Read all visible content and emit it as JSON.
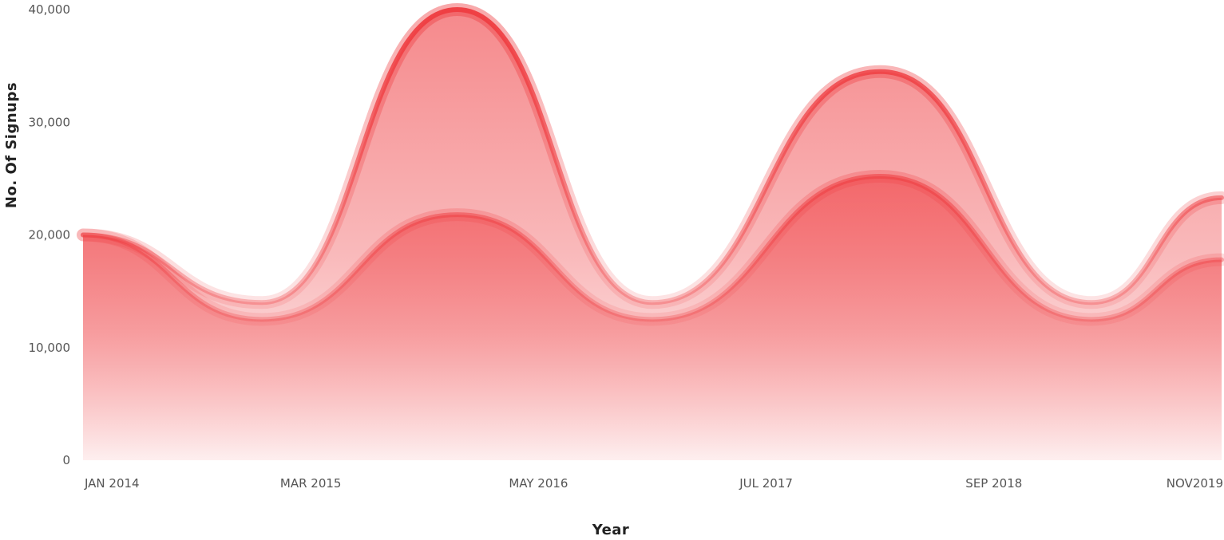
{
  "chart_data": {
    "type": "area",
    "xlabel": "Year",
    "ylabel": "No. Of Signups",
    "ylim": [
      0,
      40000
    ],
    "y_ticks": [
      "0",
      "10,000",
      "20,000",
      "30,000",
      "40,000"
    ],
    "categories": [
      "JAN 2014",
      "MAR 2015",
      "MAY 2016",
      "JUL 2017",
      "SEP 2018",
      "NOV2019"
    ],
    "grid": false,
    "legend": "none",
    "series": [
      {
        "x": [
          "JAN 2014",
          "DEC 2014",
          "DEC 2015",
          "DEC 2016",
          "FEB 2018",
          "MAR 2019",
          "NOV 2019"
        ],
        "values": [
          20000,
          14000,
          40000,
          14000,
          34500,
          14000,
          23300
        ],
        "color": "#ef3e42"
      },
      {
        "x": [
          "JAN 2014",
          "DEC 2014",
          "DEC 2015",
          "DEC 2016",
          "FEB 2018",
          "MAR 2019",
          "NOV 2019"
        ],
        "values": [
          20000,
          12500,
          21800,
          12500,
          25200,
          12500,
          17800
        ],
        "color": "#ef3e42"
      }
    ]
  }
}
